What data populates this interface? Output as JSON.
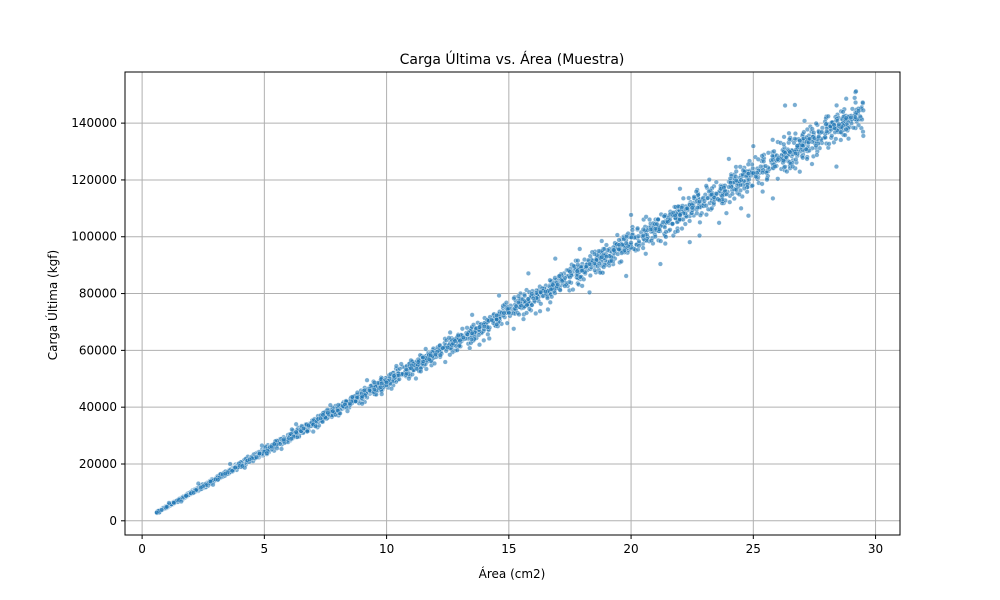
{
  "chart_data": {
    "type": "scatter",
    "title": "Carga Última vs. Área (Muestra)",
    "xlabel": "Área (cm2)",
    "ylabel": "Carga Última (kgf)",
    "xlim": [
      -0.7,
      31.0
    ],
    "ylim": [
      -5000,
      158000
    ],
    "xticks": [
      0,
      5,
      10,
      15,
      20,
      25,
      30
    ],
    "yticks": [
      0,
      20000,
      40000,
      60000,
      80000,
      100000,
      120000,
      140000
    ],
    "grid": true,
    "point_color": "#1f77b4",
    "point_edge_color": "#ffffff",
    "point_opacity": 0.6,
    "trend": {
      "slope": 4900,
      "intercept": 0,
      "x_min": 0.6,
      "x_max": 29.5
    },
    "points": [
      [
        0.6,
        2900
      ],
      [
        0.8,
        3800
      ],
      [
        1.0,
        4900
      ],
      [
        1.3,
        6400
      ],
      [
        1.5,
        7300
      ],
      [
        1.8,
        8800
      ],
      [
        2.0,
        9700
      ],
      [
        2.2,
        10800
      ],
      [
        2.5,
        12200
      ],
      [
        2.8,
        13800
      ],
      [
        3.0,
        14600
      ],
      [
        3.3,
        16300
      ],
      [
        3.5,
        17100
      ],
      [
        3.8,
        18700
      ],
      [
        4.0,
        19400
      ],
      [
        4.3,
        21200
      ],
      [
        4.5,
        22000
      ],
      [
        4.8,
        23700
      ],
      [
        5.0,
        24300
      ],
      [
        5.3,
        26100
      ],
      [
        5.5,
        26800
      ],
      [
        5.8,
        28600
      ],
      [
        6.0,
        29100
      ],
      [
        6.3,
        31200
      ],
      [
        6.5,
        31600
      ],
      [
        6.8,
        33600
      ],
      [
        7.0,
        34000
      ],
      [
        7.3,
        36100
      ],
      [
        7.5,
        36300
      ],
      [
        7.8,
        38600
      ],
      [
        8.0,
        38800
      ],
      [
        8.3,
        41000
      ],
      [
        8.5,
        41300
      ],
      [
        8.8,
        43400
      ],
      [
        9.0,
        43800
      ],
      [
        9.3,
        45900
      ],
      [
        9.5,
        46200
      ],
      [
        9.8,
        48400
      ],
      [
        10.0,
        48700
      ],
      [
        10.3,
        51000
      ],
      [
        10.5,
        51200
      ],
      [
        10.8,
        53300
      ],
      [
        11.0,
        53700
      ],
      [
        11.3,
        55900
      ],
      [
        11.5,
        56100
      ],
      [
        11.8,
        58300
      ],
      [
        12.0,
        58600
      ],
      [
        12.3,
        60800
      ],
      [
        12.5,
        61000
      ],
      [
        12.8,
        63300
      ],
      [
        13.0,
        63500
      ],
      [
        13.3,
        65700
      ],
      [
        13.5,
        66000
      ],
      [
        13.8,
        68200
      ],
      [
        14.0,
        68400
      ],
      [
        14.3,
        70700
      ],
      [
        14.5,
        70900
      ],
      [
        14.8,
        73100
      ],
      [
        15.0,
        73300
      ],
      [
        15.3,
        75600
      ],
      [
        15.5,
        75800
      ],
      [
        15.8,
        78100
      ],
      [
        16.0,
        78300
      ],
      [
        16.3,
        80500
      ],
      [
        16.5,
        80700
      ],
      [
        16.8,
        83000
      ],
      [
        17.0,
        83200
      ],
      [
        17.3,
        85500
      ],
      [
        17.5,
        85700
      ],
      [
        17.8,
        87900
      ],
      [
        18.0,
        88100
      ],
      [
        18.3,
        90400
      ],
      [
        18.5,
        90600
      ],
      [
        18.8,
        92800
      ],
      [
        19.0,
        93000
      ],
      [
        19.3,
        95300
      ],
      [
        19.5,
        95500
      ],
      [
        19.8,
        97700
      ],
      [
        20.0,
        97900
      ],
      [
        20.3,
        100200
      ],
      [
        20.5,
        100400
      ],
      [
        20.8,
        102600
      ],
      [
        21.0,
        102800
      ],
      [
        21.3,
        105100
      ],
      [
        21.5,
        105300
      ],
      [
        21.8,
        107500
      ],
      [
        22.0,
        107700
      ],
      [
        22.3,
        110000
      ],
      [
        22.5,
        110200
      ],
      [
        22.8,
        112400
      ],
      [
        23.0,
        112600
      ],
      [
        23.3,
        114900
      ],
      [
        23.5,
        115100
      ],
      [
        23.8,
        117300
      ],
      [
        24.0,
        117500
      ],
      [
        24.3,
        119800
      ],
      [
        24.5,
        120000
      ],
      [
        24.8,
        122200
      ],
      [
        25.0,
        122400
      ],
      [
        25.3,
        124700
      ],
      [
        25.5,
        124900
      ],
      [
        25.8,
        127100
      ],
      [
        26.0,
        127300
      ],
      [
        26.3,
        129600
      ],
      [
        26.5,
        129800
      ],
      [
        26.8,
        132000
      ],
      [
        27.0,
        132200
      ],
      [
        27.3,
        134500
      ],
      [
        27.5,
        134700
      ],
      [
        27.8,
        136900
      ],
      [
        28.0,
        137100
      ],
      [
        28.3,
        139400
      ],
      [
        28.5,
        139600
      ],
      [
        28.8,
        141800
      ],
      [
        29.0,
        142000
      ],
      [
        29.3,
        144300
      ],
      [
        29.5,
        144500
      ],
      [
        26.3,
        146200
      ],
      [
        26.7,
        146400
      ],
      [
        29.2,
        151200
      ],
      [
        28.8,
        148600
      ],
      [
        29.5,
        135500
      ],
      [
        28.4,
        124700
      ],
      [
        27.4,
        125600
      ],
      [
        26.0,
        120400
      ],
      [
        25.1,
        121200
      ],
      [
        24.5,
        110000
      ],
      [
        23.9,
        108300
      ],
      [
        22.8,
        100400
      ],
      [
        21.4,
        97600
      ],
      [
        20.6,
        94000
      ],
      [
        19.8,
        86200
      ],
      [
        19.2,
        91500
      ],
      [
        18.3,
        80400
      ],
      [
        17.5,
        87700
      ],
      [
        16.6,
        74400
      ],
      [
        15.6,
        71000
      ],
      [
        14.9,
        76800
      ],
      [
        13.8,
        62000
      ],
      [
        13.1,
        67600
      ],
      [
        12.2,
        58300
      ],
      [
        11.4,
        52600
      ],
      [
        10.6,
        55200
      ],
      [
        9.8,
        44600
      ],
      [
        9.2,
        49500
      ],
      [
        8.4,
        38600
      ],
      [
        7.7,
        40700
      ],
      [
        7.0,
        31400
      ],
      [
        6.3,
        34000
      ],
      [
        5.7,
        25300
      ],
      [
        4.9,
        26500
      ],
      [
        4.2,
        18700
      ],
      [
        3.6,
        20000
      ],
      [
        2.9,
        12700
      ],
      [
        2.3,
        13100
      ],
      [
        1.6,
        6800
      ],
      [
        1.1,
        6300
      ],
      [
        22.0,
        116900
      ],
      [
        23.2,
        120100
      ],
      [
        24.0,
        127400
      ],
      [
        25.0,
        131900
      ],
      [
        20.0,
        107700
      ],
      [
        18.8,
        98500
      ],
      [
        17.9,
        95700
      ],
      [
        16.9,
        92300
      ],
      [
        15.8,
        87100
      ],
      [
        14.6,
        79300
      ],
      [
        13.5,
        72500
      ],
      [
        12.6,
        66300
      ],
      [
        11.6,
        60500
      ],
      [
        10.4,
        54500
      ],
      [
        9.5,
        48700
      ],
      [
        8.6,
        43600
      ],
      [
        7.4,
        37300
      ],
      [
        6.6,
        32500
      ],
      [
        5.4,
        27000
      ],
      [
        4.4,
        21600
      ],
      [
        3.4,
        16600
      ],
      [
        2.4,
        11700
      ],
      [
        21.2,
        90400
      ],
      [
        22.4,
        98100
      ],
      [
        23.6,
        104900
      ],
      [
        24.8,
        107400
      ],
      [
        25.8,
        113500
      ],
      [
        27.6,
        128800
      ],
      [
        28.1,
        132700
      ],
      [
        26.9,
        122900
      ],
      [
        19.6,
        91300
      ],
      [
        18.0,
        82700
      ],
      [
        17.1,
        81200
      ],
      [
        16.1,
        73000
      ],
      [
        15.2,
        67600
      ],
      [
        14.2,
        64200
      ],
      [
        13.4,
        60800
      ],
      [
        12.4,
        55900
      ],
      [
        11.2,
        50100
      ],
      [
        10.2,
        46500
      ],
      [
        9.0,
        41200
      ],
      [
        8.1,
        37800
      ],
      [
        7.1,
        33300
      ],
      [
        6.1,
        28900
      ],
      [
        5.1,
        23800
      ],
      [
        4.1,
        19300
      ],
      [
        3.1,
        14500
      ],
      [
        2.1,
        9900
      ]
    ]
  }
}
